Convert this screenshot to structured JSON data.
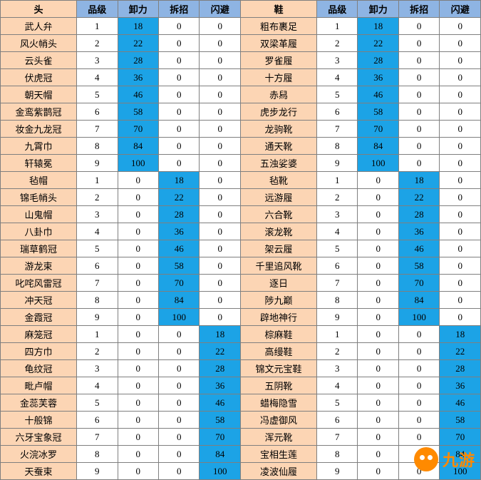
{
  "headers": {
    "tou": "头",
    "xie": "鞋",
    "pinji": "品级",
    "xieli": "卸力",
    "chaizhao": "拆招",
    "shanbi": "闪避"
  },
  "colors": {
    "hdr_green": "#c2d69b",
    "hdr_blue": "#8eb4e3",
    "name_bg": "#fcd5b4",
    "hl_blue": "#1ca3e6"
  },
  "rows": [
    {
      "lname": "武人弁",
      "llv": 1,
      "lxl": 18,
      "lcz": 0,
      "lsb": 0,
      "hl": "xl",
      "rname": "粗布裹足",
      "rlv": 1,
      "rxl": 18,
      "rcz": 0,
      "rsb": 0,
      "rhl": "xl"
    },
    {
      "lname": "风火帩头",
      "llv": 2,
      "lxl": 22,
      "lcz": 0,
      "lsb": 0,
      "hl": "xl",
      "rname": "双梁革履",
      "rlv": 2,
      "rxl": 22,
      "rcz": 0,
      "rsb": 0,
      "rhl": "xl"
    },
    {
      "lname": "云头雀",
      "llv": 3,
      "lxl": 28,
      "lcz": 0,
      "lsb": 0,
      "hl": "xl",
      "rname": "罗雀履",
      "rlv": 3,
      "rxl": 28,
      "rcz": 0,
      "rsb": 0,
      "rhl": "xl"
    },
    {
      "lname": "伏虎冠",
      "llv": 4,
      "lxl": 36,
      "lcz": 0,
      "lsb": 0,
      "hl": "xl",
      "rname": "十方履",
      "rlv": 4,
      "rxl": 36,
      "rcz": 0,
      "rsb": 0,
      "rhl": "xl"
    },
    {
      "lname": "朝天帽",
      "llv": 5,
      "lxl": 46,
      "lcz": 0,
      "lsb": 0,
      "hl": "xl",
      "rname": "赤舄",
      "rlv": 5,
      "rxl": 46,
      "rcz": 0,
      "rsb": 0,
      "rhl": "xl"
    },
    {
      "lname": "金鸾紫鹊冠",
      "llv": 6,
      "lxl": 58,
      "lcz": 0,
      "lsb": 0,
      "hl": "xl",
      "rname": "虎步龙行",
      "rlv": 6,
      "rxl": 58,
      "rcz": 0,
      "rsb": 0,
      "rhl": "xl"
    },
    {
      "lname": "妆金九龙冠",
      "llv": 7,
      "lxl": 70,
      "lcz": 0,
      "lsb": 0,
      "hl": "xl",
      "rname": "龙驹靴",
      "rlv": 7,
      "rxl": 70,
      "rcz": 0,
      "rsb": 0,
      "rhl": "xl"
    },
    {
      "lname": "九霄巾",
      "llv": 8,
      "lxl": 84,
      "lcz": 0,
      "lsb": 0,
      "hl": "xl",
      "rname": "通天靴",
      "rlv": 8,
      "rxl": 84,
      "rcz": 0,
      "rsb": 0,
      "rhl": "xl"
    },
    {
      "lname": "轩辕冕",
      "llv": 9,
      "lxl": 100,
      "lcz": 0,
      "lsb": 0,
      "hl": "xl",
      "rname": "五浊娑婆",
      "rlv": 9,
      "rxl": 100,
      "rcz": 0,
      "rsb": 0,
      "rhl": "xl"
    },
    {
      "lname": "毡帽",
      "llv": 1,
      "lxl": 0,
      "lcz": 18,
      "lsb": 0,
      "hl": "cz",
      "rname": "毡靴",
      "rlv": 1,
      "rxl": 0,
      "rcz": 18,
      "rsb": 0,
      "rhl": "cz"
    },
    {
      "lname": "锦毛帩头",
      "llv": 2,
      "lxl": 0,
      "lcz": 22,
      "lsb": 0,
      "hl": "cz",
      "rname": "远游履",
      "rlv": 2,
      "rxl": 0,
      "rcz": 22,
      "rsb": 0,
      "rhl": "cz"
    },
    {
      "lname": "山鬼帽",
      "llv": 3,
      "lxl": 0,
      "lcz": 28,
      "lsb": 0,
      "hl": "cz",
      "rname": "六合靴",
      "rlv": 3,
      "rxl": 0,
      "rcz": 28,
      "rsb": 0,
      "rhl": "cz"
    },
    {
      "lname": "八卦巾",
      "llv": 4,
      "lxl": 0,
      "lcz": 36,
      "lsb": 0,
      "hl": "cz",
      "rname": "滚龙靴",
      "rlv": 4,
      "rxl": 0,
      "rcz": 36,
      "rsb": 0,
      "rhl": "cz"
    },
    {
      "lname": "瑞草鹤冠",
      "llv": 5,
      "lxl": 0,
      "lcz": 46,
      "lsb": 0,
      "hl": "cz",
      "rname": "架云履",
      "rlv": 5,
      "rxl": 0,
      "rcz": 46,
      "rsb": 0,
      "rhl": "cz"
    },
    {
      "lname": "游龙束",
      "llv": 6,
      "lxl": 0,
      "lcz": 58,
      "lsb": 0,
      "hl": "cz",
      "rname": "千里追风靴",
      "rlv": 6,
      "rxl": 0,
      "rcz": 58,
      "rsb": 0,
      "rhl": "cz"
    },
    {
      "lname": "叱咤风雷冠",
      "llv": 7,
      "lxl": 0,
      "lcz": 70,
      "lsb": 0,
      "hl": "cz",
      "rname": "逐日",
      "rlv": 7,
      "rxl": 0,
      "rcz": 70,
      "rsb": 0,
      "rhl": "cz"
    },
    {
      "lname": "冲天冠",
      "llv": 8,
      "lxl": 0,
      "lcz": 84,
      "lsb": 0,
      "hl": "cz",
      "rname": "陟九巅",
      "rlv": 8,
      "rxl": 0,
      "rcz": 84,
      "rsb": 0,
      "rhl": "cz"
    },
    {
      "lname": "金霞冠",
      "llv": 9,
      "lxl": 0,
      "lcz": 100,
      "lsb": 0,
      "hl": "cz",
      "rname": "辟地神行",
      "rlv": 9,
      "rxl": 0,
      "rcz": 100,
      "rsb": 0,
      "rhl": "cz"
    },
    {
      "lname": "麻笼冠",
      "llv": 1,
      "lxl": 0,
      "lcz": 0,
      "lsb": 18,
      "hl": "sb",
      "rname": "棕麻鞋",
      "rlv": 1,
      "rxl": 0,
      "rcz": 0,
      "rsb": 18,
      "rhl": "sb"
    },
    {
      "lname": "四方巾",
      "llv": 2,
      "lxl": 0,
      "lcz": 0,
      "lsb": 22,
      "hl": "sb",
      "rname": "高缦鞋",
      "rlv": 2,
      "rxl": 0,
      "rcz": 0,
      "rsb": 22,
      "rhl": "sb"
    },
    {
      "lname": "龟纹冠",
      "llv": 3,
      "lxl": 0,
      "lcz": 0,
      "lsb": 28,
      "hl": "sb",
      "rname": "锦文元宝鞋",
      "rlv": 3,
      "rxl": 0,
      "rcz": 0,
      "rsb": 28,
      "rhl": "sb"
    },
    {
      "lname": "毗卢帽",
      "llv": 4,
      "lxl": 0,
      "lcz": 0,
      "lsb": 36,
      "hl": "sb",
      "rname": "五阴靴",
      "rlv": 4,
      "rxl": 0,
      "rcz": 0,
      "rsb": 36,
      "rhl": "sb"
    },
    {
      "lname": "金蕊芙蓉",
      "llv": 5,
      "lxl": 0,
      "lcz": 0,
      "lsb": 46,
      "hl": "sb",
      "rname": "蜡梅隐雪",
      "rlv": 5,
      "rxl": 0,
      "rcz": 0,
      "rsb": 46,
      "rhl": "sb"
    },
    {
      "lname": "十般锦",
      "llv": 6,
      "lxl": 0,
      "lcz": 0,
      "lsb": 58,
      "hl": "sb",
      "rname": "冯虚御风",
      "rlv": 6,
      "rxl": 0,
      "rcz": 0,
      "rsb": 58,
      "rhl": "sb"
    },
    {
      "lname": "六牙宝象冠",
      "llv": 7,
      "lxl": 0,
      "lcz": 0,
      "lsb": 70,
      "hl": "sb",
      "rname": "浑元靴",
      "rlv": 7,
      "rxl": 0,
      "rcz": 0,
      "rsb": 70,
      "rhl": "sb"
    },
    {
      "lname": "火浣冰罗",
      "llv": 8,
      "lxl": 0,
      "lcz": 0,
      "lsb": 84,
      "hl": "sb",
      "rname": "宝相生莲",
      "rlv": 8,
      "rxl": 0,
      "rcz": 0,
      "rsb": 84,
      "rhl": "sb"
    },
    {
      "lname": "天蚕束",
      "llv": 9,
      "lxl": 0,
      "lcz": 0,
      "lsb": 100,
      "hl": "sb",
      "rname": "凌波仙履",
      "rlv": 9,
      "rxl": 0,
      "rcz": 0,
      "rsb": 100,
      "rhl": "sb"
    }
  ],
  "brand": "九游"
}
